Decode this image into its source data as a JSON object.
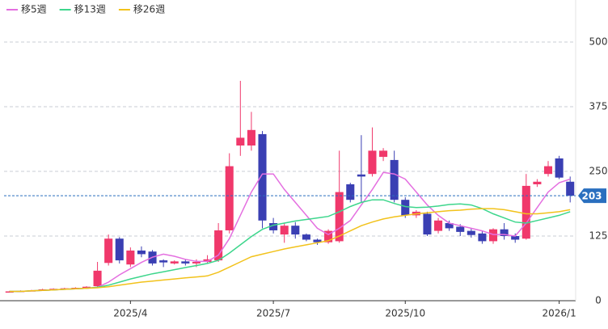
{
  "chart_data": {
    "type": "candlestick",
    "categories": [
      null,
      null,
      null,
      null,
      null,
      null,
      null,
      null,
      null,
      null,
      null,
      "2025/4",
      null,
      null,
      null,
      null,
      null,
      null,
      null,
      null,
      null,
      null,
      null,
      null,
      "2025/7",
      null,
      null,
      null,
      null,
      null,
      null,
      null,
      null,
      null,
      null,
      null,
      "2025/10",
      null,
      null,
      null,
      null,
      null,
      null,
      null,
      null,
      null,
      null,
      null,
      null,
      null,
      "2026/1",
      null
    ],
    "open": [
      17,
      18,
      19,
      20,
      22,
      23,
      24,
      25,
      28,
      73,
      120,
      70,
      97,
      95,
      78,
      72,
      76,
      72,
      75,
      78,
      136,
      300,
      300,
      322,
      150,
      128,
      145,
      128,
      118,
      113,
      115,
      225,
      244,
      245,
      278,
      272,
      195,
      165,
      168,
      135,
      150,
      143,
      135,
      130,
      115,
      138,
      125,
      120,
      225,
      245,
      275,
      230
    ],
    "high": [
      19,
      20,
      21,
      23,
      24,
      25,
      26,
      28,
      75,
      128,
      123,
      103,
      105,
      98,
      80,
      78,
      80,
      80,
      88,
      150,
      285,
      425,
      365,
      328,
      160,
      150,
      152,
      130,
      120,
      138,
      290,
      228,
      320,
      335,
      295,
      290,
      200,
      175,
      172,
      160,
      155,
      148,
      140,
      135,
      140,
      150,
      130,
      245,
      235,
      270,
      280,
      240
    ],
    "low": [
      16,
      17,
      18,
      19,
      21,
      22,
      23,
      24,
      25,
      68,
      72,
      65,
      84,
      68,
      65,
      70,
      68,
      65,
      72,
      75,
      130,
      280,
      290,
      140,
      130,
      112,
      120,
      115,
      108,
      110,
      112,
      190,
      190,
      240,
      270,
      190,
      160,
      160,
      125,
      130,
      135,
      125,
      122,
      110,
      110,
      118,
      112,
      118,
      220,
      240,
      235,
      190
    ],
    "close": [
      18,
      19,
      20,
      22,
      23,
      24,
      25,
      27,
      58,
      120,
      78,
      97,
      90,
      72,
      74,
      76,
      72,
      75,
      80,
      136,
      260,
      315,
      330,
      155,
      136,
      145,
      128,
      118,
      113,
      135,
      210,
      195,
      240,
      290,
      290,
      195,
      165,
      172,
      128,
      155,
      140,
      133,
      127,
      115,
      138,
      125,
      118,
      222,
      230,
      260,
      238,
      203
    ],
    "up_color": "#f0386b",
    "down_color": "#3a3fb3",
    "series": [
      {
        "name": "移5週",
        "color": "#e46fe0",
        "values": [
          18,
          18,
          19,
          20,
          21,
          22,
          23,
          24,
          26,
          36,
          50,
          62,
          74,
          84,
          90,
          86,
          80,
          76,
          76,
          88,
          120,
          165,
          210,
          245,
          245,
          215,
          190,
          165,
          140,
          128,
          140,
          155,
          185,
          215,
          248,
          245,
          235,
          210,
          185,
          165,
          150,
          145,
          140,
          135,
          128,
          128,
          125,
          150,
          180,
          210,
          228,
          235
        ]
      },
      {
        "name": "移13週",
        "color": "#3dd68c",
        "values": [
          18,
          18,
          19,
          20,
          21,
          22,
          23,
          24,
          26,
          30,
          36,
          42,
          47,
          52,
          56,
          60,
          64,
          68,
          72,
          78,
          92,
          108,
          124,
          138,
          146,
          150,
          154,
          157,
          160,
          163,
          172,
          182,
          190,
          195,
          195,
          188,
          182,
          180,
          181,
          183,
          186,
          187,
          185,
          178,
          168,
          160,
          152,
          150,
          155,
          160,
          165,
          172
        ]
      },
      {
        "name": "移26週",
        "color": "#f2c21b",
        "values": [
          18,
          18,
          19,
          20,
          21,
          22,
          23,
          24,
          25,
          27,
          30,
          33,
          36,
          38,
          40,
          42,
          44,
          46,
          48,
          55,
          65,
          75,
          85,
          90,
          95,
          100,
          104,
          108,
          112,
          116,
          125,
          135,
          145,
          152,
          158,
          162,
          165,
          168,
          170,
          172,
          174,
          175,
          177,
          178,
          178,
          176,
          172,
          168,
          168,
          170,
          172,
          176
        ]
      }
    ],
    "ylim": [
      0,
      560
    ],
    "yticks": [
      0,
      125,
      250,
      375,
      500
    ],
    "grid": true,
    "price_line_color": "#2a6fbf"
  }
}
